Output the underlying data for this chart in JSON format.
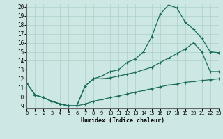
{
  "xlabel": "Humidex (Indice chaleur)",
  "background_color": "#cde8e4",
  "grid_color": "#b0d4cc",
  "line_color": "#1a6b5a",
  "xlim": [
    0,
    23
  ],
  "ylim": [
    9,
    20
  ],
  "yticks": [
    9,
    10,
    11,
    12,
    13,
    14,
    15,
    16,
    17,
    18,
    19,
    20
  ],
  "xticks": [
    0,
    1,
    2,
    3,
    4,
    5,
    6,
    7,
    8,
    9,
    10,
    11,
    12,
    13,
    14,
    15,
    16,
    17,
    18,
    19,
    20,
    21,
    22,
    23
  ],
  "series": [
    {
      "x": [
        0,
        1,
        2,
        3,
        4,
        5,
        6,
        7,
        8,
        9,
        10,
        11,
        12,
        13,
        14,
        15,
        16,
        17,
        18,
        19,
        20,
        21,
        22,
        23
      ],
      "y": [
        11.5,
        10.2,
        9.9,
        9.5,
        9.2,
        9.0,
        9.0,
        11.2,
        12.0,
        12.3,
        12.8,
        13.0,
        13.8,
        14.2,
        15.0,
        16.7,
        19.2,
        20.2,
        19.9,
        18.3,
        17.5,
        16.5,
        15.0,
        14.9
      ]
    },
    {
      "x": [
        0,
        1,
        2,
        3,
        4,
        5,
        6,
        7,
        8,
        9,
        10,
        11,
        12,
        13,
        14,
        15,
        16,
        17,
        18,
        19,
        20,
        21,
        22,
        23
      ],
      "y": [
        11.5,
        10.2,
        9.9,
        9.5,
        9.2,
        9.0,
        9.0,
        11.2,
        12.0,
        12.0,
        12.1,
        12.3,
        12.5,
        12.7,
        13.0,
        13.3,
        13.8,
        14.3,
        14.8,
        15.3,
        16.0,
        15.0,
        12.8,
        12.8
      ]
    },
    {
      "x": [
        0,
        1,
        2,
        3,
        4,
        5,
        6,
        7,
        8,
        9,
        10,
        11,
        12,
        13,
        14,
        15,
        16,
        17,
        18,
        19,
        20,
        21,
        22,
        23
      ],
      "y": [
        11.5,
        10.2,
        9.9,
        9.5,
        9.2,
        9.0,
        9.0,
        9.2,
        9.5,
        9.7,
        9.9,
        10.1,
        10.3,
        10.5,
        10.7,
        10.9,
        11.1,
        11.3,
        11.4,
        11.6,
        11.7,
        11.8,
        11.9,
        12.0
      ]
    }
  ]
}
